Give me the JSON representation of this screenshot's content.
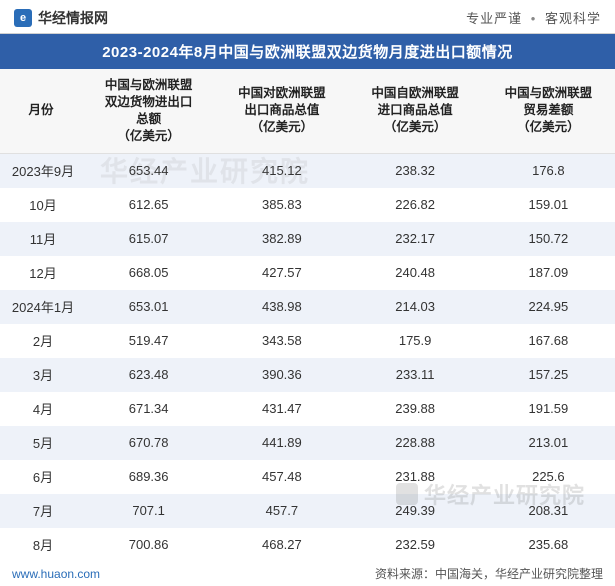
{
  "header": {
    "site_name": "华经情报网",
    "tagline_left": "专业严谨",
    "tagline_right": "客观科学"
  },
  "title": "2023-2024年8月中国与欧洲联盟双边货物月度进出口额情况",
  "table": {
    "columns": [
      "月份",
      "中国与欧洲联盟\n双边货物进出口\n总额\n（亿美元）",
      "中国对欧洲联盟\n出口商品总值\n（亿美元）",
      "中国自欧洲联盟\n进口商品总值\n（亿美元）",
      "中国与欧洲联盟\n贸易差额\n（亿美元）"
    ],
    "rows": [
      [
        "2023年9月",
        "653.44",
        "415.12",
        "238.32",
        "176.8"
      ],
      [
        "10月",
        "612.65",
        "385.83",
        "226.82",
        "159.01"
      ],
      [
        "11月",
        "615.07",
        "382.89",
        "232.17",
        "150.72"
      ],
      [
        "12月",
        "668.05",
        "427.57",
        "240.48",
        "187.09"
      ],
      [
        "2024年1月",
        "653.01",
        "438.98",
        "214.03",
        "224.95"
      ],
      [
        "2月",
        "519.47",
        "343.58",
        "175.9",
        "167.68"
      ],
      [
        "3月",
        "623.48",
        "390.36",
        "233.11",
        "157.25"
      ],
      [
        "4月",
        "671.34",
        "431.47",
        "239.88",
        "191.59"
      ],
      [
        "5月",
        "670.78",
        "441.89",
        "228.88",
        "213.01"
      ],
      [
        "6月",
        "689.36",
        "457.48",
        "231.88",
        "225.6"
      ],
      [
        "7月",
        "707.1",
        "457.7",
        "249.39",
        "208.31"
      ],
      [
        "8月",
        "700.86",
        "468.27",
        "232.59",
        "235.68"
      ]
    ],
    "header_bg": "#f7f7f7",
    "row_even_bg": "#ffffff",
    "row_odd_bg": "#eef2f9",
    "title_bar_bg": "#2f5fa8",
    "title_bar_color": "#ffffff"
  },
  "footer": {
    "url": "www.huaon.com",
    "source": "资料来源：中国海关，华经产业研究院整理"
  },
  "watermark": {
    "text": "华经产业研究院",
    "center_text": "华经产业研究院"
  }
}
